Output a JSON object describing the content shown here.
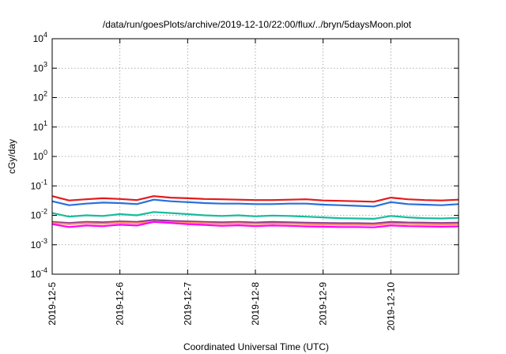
{
  "chart_data": {
    "type": "line",
    "title": "/data/run/goesPlots/archive/2019-12-10/22:00/flux/../bryn/5daysMoon.plot",
    "xlabel": "Coordinated Universal Time (UTC)",
    "ylabel": "cGy/day",
    "yscale": "log",
    "ylim": [
      0.0001,
      10000
    ],
    "xlim": [
      "2019-12-05",
      "2019-12-11"
    ],
    "grid": true,
    "x_ticks": [
      "2019-12-5",
      "2019-12-6",
      "2019-12-7",
      "2019-12-8",
      "2019-12-9",
      "2019-12-10"
    ],
    "y_ticks": [
      {
        "base": "10",
        "exp": "-4",
        "value": 0.0001
      },
      {
        "base": "10",
        "exp": "-3",
        "value": 0.001
      },
      {
        "base": "10",
        "exp": "-2",
        "value": 0.01
      },
      {
        "base": "10",
        "exp": "-1",
        "value": 0.1
      },
      {
        "base": "10",
        "exp": "0",
        "value": 1
      },
      {
        "base": "10",
        "exp": "1",
        "value": 10
      },
      {
        "base": "10",
        "exp": "2",
        "value": 100
      },
      {
        "base": "10",
        "exp": "3",
        "value": 1000
      },
      {
        "base": "10",
        "exp": "4",
        "value": 10000
      }
    ],
    "series": [
      {
        "color": "#e41a1c",
        "x": [
          "2019-12-05T00:00",
          "2019-12-05T06:00",
          "2019-12-05T12:00",
          "2019-12-05T18:00",
          "2019-12-06T00:00",
          "2019-12-06T06:00",
          "2019-12-06T12:00",
          "2019-12-06T18:00",
          "2019-12-07T00:00",
          "2019-12-07T06:00",
          "2019-12-07T12:00",
          "2019-12-07T18:00",
          "2019-12-08T00:00",
          "2019-12-08T06:00",
          "2019-12-08T12:00",
          "2019-12-08T18:00",
          "2019-12-09T00:00",
          "2019-12-09T06:00",
          "2019-12-09T12:00",
          "2019-12-09T18:00",
          "2019-12-10T00:00",
          "2019-12-10T06:00",
          "2019-12-10T12:00",
          "2019-12-10T18:00",
          "2019-12-11T00:00"
        ],
        "values": [
          0.045,
          0.032,
          0.035,
          0.038,
          0.036,
          0.033,
          0.045,
          0.04,
          0.038,
          0.036,
          0.035,
          0.034,
          0.033,
          0.033,
          0.034,
          0.035,
          0.032,
          0.031,
          0.03,
          0.029,
          0.04,
          0.035,
          0.033,
          0.032,
          0.034
        ]
      },
      {
        "color": "#8b3a8b",
        "x": [
          "2019-12-05T00:00",
          "2019-12-05T06:00",
          "2019-12-05T12:00",
          "2019-12-05T18:00",
          "2019-12-06T00:00",
          "2019-12-06T06:00",
          "2019-12-06T12:00",
          "2019-12-06T18:00",
          "2019-12-07T00:00",
          "2019-12-07T06:00",
          "2019-12-07T12:00",
          "2019-12-07T18:00",
          "2019-12-08T00:00",
          "2019-12-08T06:00",
          "2019-12-08T12:00",
          "2019-12-08T18:00",
          "2019-12-09T00:00",
          "2019-12-09T06:00",
          "2019-12-09T12:00",
          "2019-12-09T18:00",
          "2019-12-10T00:00",
          "2019-12-10T06:00",
          "2019-12-10T12:00",
          "2019-12-10T18:00",
          "2019-12-11T00:00"
        ],
        "values": [
          0.006,
          0.0055,
          0.006,
          0.0058,
          0.0062,
          0.006,
          0.007,
          0.0065,
          0.0062,
          0.006,
          0.0058,
          0.006,
          0.0057,
          0.006,
          0.0058,
          0.0056,
          0.0055,
          0.0054,
          0.0054,
          0.0053,
          0.006,
          0.0057,
          0.0056,
          0.0055,
          0.0056
        ]
      },
      {
        "color": "#ff8c69",
        "x": [
          "2019-12-05T00:00",
          "2019-12-05T06:00",
          "2019-12-05T12:00",
          "2019-12-05T18:00",
          "2019-12-06T00:00",
          "2019-12-06T06:00",
          "2019-12-06T12:00",
          "2019-12-06T18:00",
          "2019-12-07T00:00",
          "2019-12-07T06:00",
          "2019-12-07T12:00",
          "2019-12-07T18:00",
          "2019-12-08T00:00",
          "2019-12-08T06:00",
          "2019-12-08T12:00",
          "2019-12-08T18:00",
          "2019-12-09T00:00",
          "2019-12-09T06:00",
          "2019-12-09T12:00",
          "2019-12-09T18:00",
          "2019-12-10T00:00",
          "2019-12-10T06:00",
          "2019-12-10T12:00",
          "2019-12-10T18:00",
          "2019-12-11T00:00"
        ],
        "values": [
          0.0055,
          0.005,
          0.0054,
          0.0052,
          0.0056,
          0.0054,
          0.006,
          0.0058,
          0.0056,
          0.0054,
          0.0052,
          0.0054,
          0.0051,
          0.0053,
          0.0052,
          0.005,
          0.0049,
          0.0048,
          0.0048,
          0.0047,
          0.0053,
          0.0051,
          0.005,
          0.0049,
          0.005
        ]
      },
      {
        "color": "#1abc9c",
        "x": [
          "2019-12-05T00:00",
          "2019-12-05T06:00",
          "2019-12-05T12:00",
          "2019-12-05T18:00",
          "2019-12-06T00:00",
          "2019-12-06T06:00",
          "2019-12-06T12:00",
          "2019-12-06T18:00",
          "2019-12-07T00:00",
          "2019-12-07T06:00",
          "2019-12-07T12:00",
          "2019-12-07T18:00",
          "2019-12-08T00:00",
          "2019-12-08T06:00",
          "2019-12-08T12:00",
          "2019-12-08T18:00",
          "2019-12-09T00:00",
          "2019-12-09T06:00",
          "2019-12-09T12:00",
          "2019-12-09T18:00",
          "2019-12-10T00:00",
          "2019-12-10T06:00",
          "2019-12-10T12:00",
          "2019-12-10T18:00",
          "2019-12-11T00:00"
        ],
        "values": [
          0.012,
          0.009,
          0.01,
          0.0095,
          0.011,
          0.01,
          0.013,
          0.012,
          0.011,
          0.01,
          0.0095,
          0.01,
          0.0092,
          0.0098,
          0.0095,
          0.009,
          0.0085,
          0.008,
          0.0078,
          0.0076,
          0.0095,
          0.0085,
          0.008,
          0.0078,
          0.0082
        ]
      },
      {
        "color": "#2a6fdb",
        "x": [
          "2019-12-05T00:00",
          "2019-12-05T06:00",
          "2019-12-05T12:00",
          "2019-12-05T18:00",
          "2019-12-06T00:00",
          "2019-12-06T06:00",
          "2019-12-06T12:00",
          "2019-12-06T18:00",
          "2019-12-07T00:00",
          "2019-12-07T06:00",
          "2019-12-07T12:00",
          "2019-12-07T18:00",
          "2019-12-08T00:00",
          "2019-12-08T06:00",
          "2019-12-08T12:00",
          "2019-12-08T18:00",
          "2019-12-09T00:00",
          "2019-12-09T06:00",
          "2019-12-09T12:00",
          "2019-12-09T18:00",
          "2019-12-10T00:00",
          "2019-12-10T06:00",
          "2019-12-10T12:00",
          "2019-12-10T18:00",
          "2019-12-11T00:00"
        ],
        "values": [
          0.03,
          0.022,
          0.025,
          0.027,
          0.026,
          0.024,
          0.034,
          0.03,
          0.028,
          0.026,
          0.025,
          0.025,
          0.024,
          0.024,
          0.025,
          0.025,
          0.023,
          0.022,
          0.021,
          0.02,
          0.028,
          0.024,
          0.023,
          0.022,
          0.024
        ]
      },
      {
        "color": "#ff00ff",
        "x": [
          "2019-12-05T00:00",
          "2019-12-05T06:00",
          "2019-12-05T12:00",
          "2019-12-05T18:00",
          "2019-12-06T00:00",
          "2019-12-06T06:00",
          "2019-12-06T12:00",
          "2019-12-06T18:00",
          "2019-12-07T00:00",
          "2019-12-07T06:00",
          "2019-12-07T12:00",
          "2019-12-07T18:00",
          "2019-12-08T00:00",
          "2019-12-08T06:00",
          "2019-12-08T12:00",
          "2019-12-08T18:00",
          "2019-12-09T00:00",
          "2019-12-09T06:00",
          "2019-12-09T12:00",
          "2019-12-09T18:00",
          "2019-12-10T00:00",
          "2019-12-10T06:00",
          "2019-12-10T12:00",
          "2019-12-10T18:00",
          "2019-12-11T00:00"
        ],
        "values": [
          0.005,
          0.004,
          0.0045,
          0.0043,
          0.0048,
          0.0045,
          0.006,
          0.0055,
          0.005,
          0.0047,
          0.0044,
          0.0046,
          0.0043,
          0.0045,
          0.0044,
          0.0042,
          0.0041,
          0.004,
          0.004,
          0.0039,
          0.0045,
          0.0043,
          0.0042,
          0.0041,
          0.0042
        ]
      }
    ]
  }
}
